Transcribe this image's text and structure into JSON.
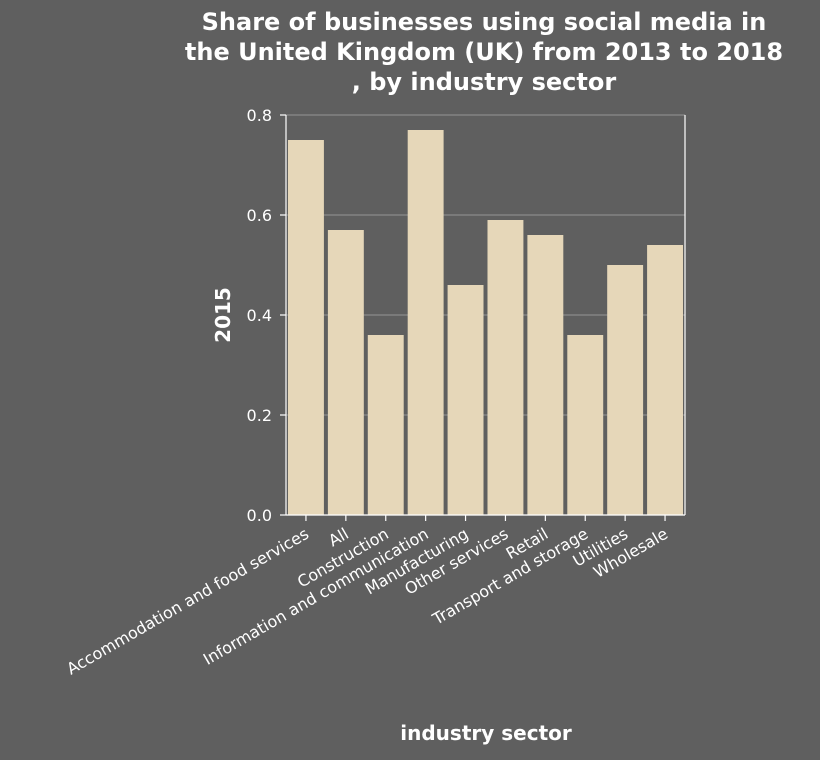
{
  "chart_data": {
    "type": "bar",
    "title_lines": [
      "Share of businesses using social media in",
      "the United Kingdom (UK) from 2013 to 2018",
      ", by industry sector"
    ],
    "xlabel": "industry sector",
    "ylabel": "2015",
    "categories": [
      "Accommodation and food services",
      "All",
      "Construction",
      "Information and communication",
      "Manufacturing",
      "Other services",
      "Retail",
      "Transport and storage",
      "Utilities",
      "Wholesale"
    ],
    "values": [
      0.75,
      0.57,
      0.36,
      0.77,
      0.46,
      0.59,
      0.56,
      0.36,
      0.5,
      0.54
    ],
    "ylim": [
      0,
      0.8
    ],
    "yticks": [
      0.0,
      0.2,
      0.4,
      0.6,
      0.8
    ],
    "ytick_labels": [
      "0.0",
      "0.2",
      "0.4",
      "0.6",
      "0.8"
    ],
    "grid": true,
    "colors": {
      "background": "#5f5f5f",
      "bar": "#e6d7b9",
      "grid": "#8a8a8a",
      "axis": "#ffffff",
      "text": "#ffffff"
    }
  }
}
